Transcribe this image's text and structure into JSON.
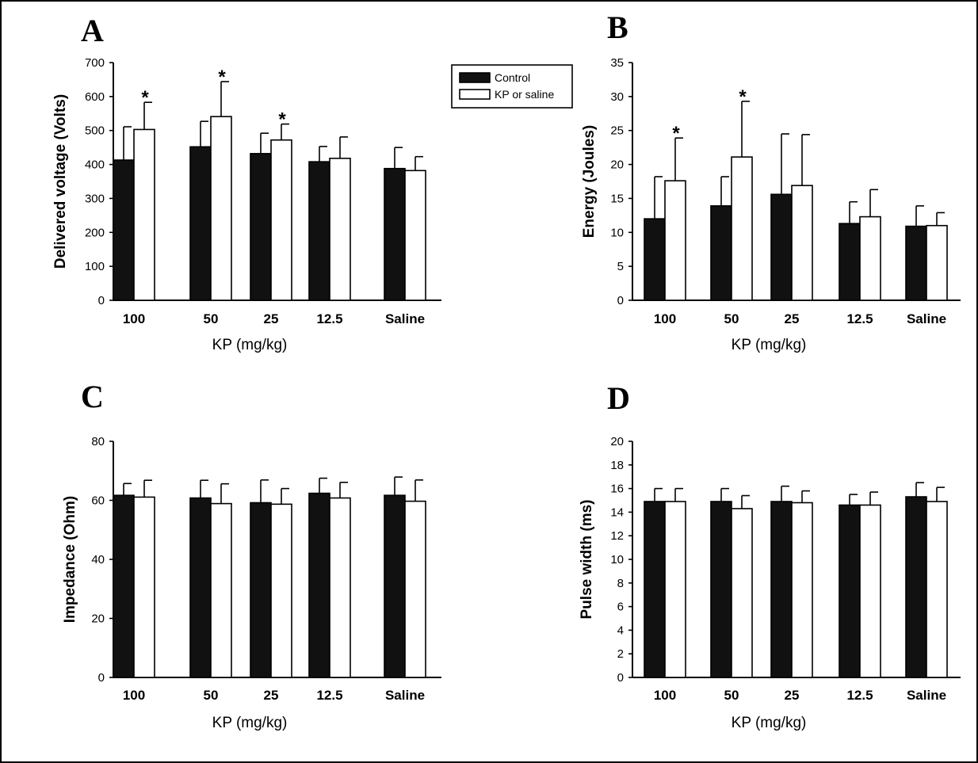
{
  "legend": {
    "items": [
      {
        "label": "Control",
        "style": "dark"
      },
      {
        "label": "KP or saline",
        "style": "light"
      }
    ]
  },
  "chart_data": [
    {
      "panel": "A",
      "type": "bar",
      "categories": [
        "100",
        "50",
        "25",
        "12.5",
        "Saline"
      ],
      "xlabel": "KP (mg/kg)",
      "ylabel": "Delivered voltage (Volts)",
      "ylim": [
        0,
        700
      ],
      "yticks": [
        0,
        100,
        200,
        300,
        400,
        500,
        600,
        700
      ],
      "significance_marker": "*",
      "series": [
        {
          "name": "Control",
          "values": [
            413,
            452,
            432,
            408,
            388
          ],
          "errors": [
            98,
            75,
            60,
            45,
            62
          ]
        },
        {
          "name": "KP or saline",
          "values": [
            503,
            541,
            472,
            418,
            382
          ],
          "errors": [
            80,
            103,
            47,
            63,
            41
          ],
          "significant": [
            true,
            true,
            true,
            false,
            false
          ]
        }
      ]
    },
    {
      "panel": "B",
      "type": "bar",
      "categories": [
        "100",
        "50",
        "25",
        "12.5",
        "Saline"
      ],
      "xlabel": "KP (mg/kg)",
      "ylabel": "Energy (Joules)",
      "ylim": [
        0,
        35
      ],
      "yticks": [
        0,
        5,
        10,
        15,
        20,
        25,
        30,
        35
      ],
      "significance_marker": "*",
      "series": [
        {
          "name": "Control",
          "values": [
            12.0,
            13.9,
            15.6,
            11.3,
            10.9
          ],
          "errors": [
            6.2,
            4.3,
            8.9,
            3.2,
            3.0
          ]
        },
        {
          "name": "KP or saline",
          "values": [
            17.6,
            21.1,
            16.9,
            12.3,
            11.0
          ],
          "errors": [
            6.3,
            8.2,
            7.5,
            4.0,
            1.9
          ],
          "significant": [
            true,
            true,
            false,
            false,
            false
          ]
        }
      ]
    },
    {
      "panel": "C",
      "type": "bar",
      "categories": [
        "100",
        "50",
        "25",
        "12.5",
        "Saline"
      ],
      "xlabel": "KP (mg/kg)",
      "ylabel": "Impedance (Ohm)",
      "ylim": [
        0,
        80
      ],
      "yticks": [
        0,
        20,
        40,
        60,
        80
      ],
      "series": [
        {
          "name": "Control",
          "values": [
            61.7,
            60.8,
            59.2,
            62.4,
            61.7
          ],
          "errors": [
            4.0,
            6.0,
            7.7,
            5.1,
            6.2
          ]
        },
        {
          "name": "KP or saline",
          "values": [
            61.1,
            58.9,
            58.7,
            60.8,
            59.7
          ],
          "errors": [
            5.7,
            6.7,
            5.3,
            5.3,
            7.2
          ]
        }
      ]
    },
    {
      "panel": "D",
      "type": "bar",
      "categories": [
        "100",
        "50",
        "25",
        "12.5",
        "Saline"
      ],
      "xlabel": "KP (mg/kg)",
      "ylabel": "Pulse width (ms)",
      "ylim": [
        0,
        20
      ],
      "yticks": [
        0,
        2,
        4,
        6,
        8,
        10,
        12,
        14,
        16,
        18,
        20
      ],
      "series": [
        {
          "name": "Control",
          "values": [
            14.9,
            14.9,
            14.9,
            14.6,
            15.3
          ],
          "errors": [
            1.1,
            1.1,
            1.3,
            0.9,
            1.2
          ]
        },
        {
          "name": "KP or saline",
          "values": [
            14.9,
            14.3,
            14.8,
            14.6,
            14.9
          ],
          "errors": [
            1.1,
            1.1,
            1.0,
            1.1,
            1.2
          ]
        }
      ]
    }
  ]
}
